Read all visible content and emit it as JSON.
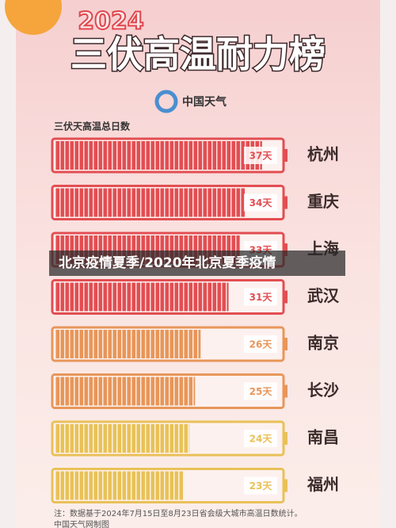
{
  "chart_data": {
    "type": "bar",
    "year": "2024",
    "title": "三伏高温耐力榜",
    "brand": "中国天气",
    "subtitle": "三伏天高温总日数",
    "categories": [
      "杭州",
      "重庆",
      "上海",
      "武汉",
      "南京",
      "长沙",
      "南昌",
      "福州"
    ],
    "values": [
      37,
      34,
      33,
      31,
      26,
      25,
      24,
      23
    ],
    "value_labels": [
      "37天",
      "34天",
      "33天",
      "31天",
      "26天",
      "25天",
      "24天",
      "23天"
    ],
    "colors": [
      "#e24e52",
      "#e24e52",
      "#e24e52",
      "#e24e52",
      "#e8965a",
      "#e8965a",
      "#e9c158",
      "#e9c158"
    ],
    "note": "注：数据基于2024年7月15日至8月23日省会级大城市高温日数统计。",
    "credit": "中国天气网制图",
    "banner": "北京疫情夏季/2020年北京夏季疫情"
  }
}
